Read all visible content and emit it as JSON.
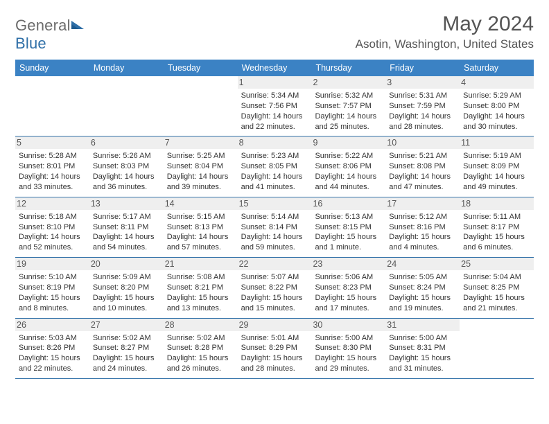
{
  "brand": {
    "general": "General",
    "blue": "Blue"
  },
  "title": "May 2024",
  "location": "Asotin, Washington, United States",
  "weekdays": [
    "Sunday",
    "Monday",
    "Tuesday",
    "Wednesday",
    "Thursday",
    "Friday",
    "Saturday"
  ],
  "colors": {
    "header_bg": "#3b82c4",
    "header_text": "#ffffff",
    "border": "#2f6fa7",
    "daynum_bg": "#efefef",
    "body_text": "#333333",
    "title_text": "#555555"
  },
  "weeks": [
    [
      null,
      null,
      null,
      {
        "n": "1",
        "sr": "Sunrise: 5:34 AM",
        "ss": "Sunset: 7:56 PM",
        "d1": "Daylight: 14 hours",
        "d2": "and 22 minutes."
      },
      {
        "n": "2",
        "sr": "Sunrise: 5:32 AM",
        "ss": "Sunset: 7:57 PM",
        "d1": "Daylight: 14 hours",
        "d2": "and 25 minutes."
      },
      {
        "n": "3",
        "sr": "Sunrise: 5:31 AM",
        "ss": "Sunset: 7:59 PM",
        "d1": "Daylight: 14 hours",
        "d2": "and 28 minutes."
      },
      {
        "n": "4",
        "sr": "Sunrise: 5:29 AM",
        "ss": "Sunset: 8:00 PM",
        "d1": "Daylight: 14 hours",
        "d2": "and 30 minutes."
      }
    ],
    [
      {
        "n": "5",
        "sr": "Sunrise: 5:28 AM",
        "ss": "Sunset: 8:01 PM",
        "d1": "Daylight: 14 hours",
        "d2": "and 33 minutes."
      },
      {
        "n": "6",
        "sr": "Sunrise: 5:26 AM",
        "ss": "Sunset: 8:03 PM",
        "d1": "Daylight: 14 hours",
        "d2": "and 36 minutes."
      },
      {
        "n": "7",
        "sr": "Sunrise: 5:25 AM",
        "ss": "Sunset: 8:04 PM",
        "d1": "Daylight: 14 hours",
        "d2": "and 39 minutes."
      },
      {
        "n": "8",
        "sr": "Sunrise: 5:23 AM",
        "ss": "Sunset: 8:05 PM",
        "d1": "Daylight: 14 hours",
        "d2": "and 41 minutes."
      },
      {
        "n": "9",
        "sr": "Sunrise: 5:22 AM",
        "ss": "Sunset: 8:06 PM",
        "d1": "Daylight: 14 hours",
        "d2": "and 44 minutes."
      },
      {
        "n": "10",
        "sr": "Sunrise: 5:21 AM",
        "ss": "Sunset: 8:08 PM",
        "d1": "Daylight: 14 hours",
        "d2": "and 47 minutes."
      },
      {
        "n": "11",
        "sr": "Sunrise: 5:19 AM",
        "ss": "Sunset: 8:09 PM",
        "d1": "Daylight: 14 hours",
        "d2": "and 49 minutes."
      }
    ],
    [
      {
        "n": "12",
        "sr": "Sunrise: 5:18 AM",
        "ss": "Sunset: 8:10 PM",
        "d1": "Daylight: 14 hours",
        "d2": "and 52 minutes."
      },
      {
        "n": "13",
        "sr": "Sunrise: 5:17 AM",
        "ss": "Sunset: 8:11 PM",
        "d1": "Daylight: 14 hours",
        "d2": "and 54 minutes."
      },
      {
        "n": "14",
        "sr": "Sunrise: 5:15 AM",
        "ss": "Sunset: 8:13 PM",
        "d1": "Daylight: 14 hours",
        "d2": "and 57 minutes."
      },
      {
        "n": "15",
        "sr": "Sunrise: 5:14 AM",
        "ss": "Sunset: 8:14 PM",
        "d1": "Daylight: 14 hours",
        "d2": "and 59 minutes."
      },
      {
        "n": "16",
        "sr": "Sunrise: 5:13 AM",
        "ss": "Sunset: 8:15 PM",
        "d1": "Daylight: 15 hours",
        "d2": "and 1 minute."
      },
      {
        "n": "17",
        "sr": "Sunrise: 5:12 AM",
        "ss": "Sunset: 8:16 PM",
        "d1": "Daylight: 15 hours",
        "d2": "and 4 minutes."
      },
      {
        "n": "18",
        "sr": "Sunrise: 5:11 AM",
        "ss": "Sunset: 8:17 PM",
        "d1": "Daylight: 15 hours",
        "d2": "and 6 minutes."
      }
    ],
    [
      {
        "n": "19",
        "sr": "Sunrise: 5:10 AM",
        "ss": "Sunset: 8:19 PM",
        "d1": "Daylight: 15 hours",
        "d2": "and 8 minutes."
      },
      {
        "n": "20",
        "sr": "Sunrise: 5:09 AM",
        "ss": "Sunset: 8:20 PM",
        "d1": "Daylight: 15 hours",
        "d2": "and 10 minutes."
      },
      {
        "n": "21",
        "sr": "Sunrise: 5:08 AM",
        "ss": "Sunset: 8:21 PM",
        "d1": "Daylight: 15 hours",
        "d2": "and 13 minutes."
      },
      {
        "n": "22",
        "sr": "Sunrise: 5:07 AM",
        "ss": "Sunset: 8:22 PM",
        "d1": "Daylight: 15 hours",
        "d2": "and 15 minutes."
      },
      {
        "n": "23",
        "sr": "Sunrise: 5:06 AM",
        "ss": "Sunset: 8:23 PM",
        "d1": "Daylight: 15 hours",
        "d2": "and 17 minutes."
      },
      {
        "n": "24",
        "sr": "Sunrise: 5:05 AM",
        "ss": "Sunset: 8:24 PM",
        "d1": "Daylight: 15 hours",
        "d2": "and 19 minutes."
      },
      {
        "n": "25",
        "sr": "Sunrise: 5:04 AM",
        "ss": "Sunset: 8:25 PM",
        "d1": "Daylight: 15 hours",
        "d2": "and 21 minutes."
      }
    ],
    [
      {
        "n": "26",
        "sr": "Sunrise: 5:03 AM",
        "ss": "Sunset: 8:26 PM",
        "d1": "Daylight: 15 hours",
        "d2": "and 22 minutes."
      },
      {
        "n": "27",
        "sr": "Sunrise: 5:02 AM",
        "ss": "Sunset: 8:27 PM",
        "d1": "Daylight: 15 hours",
        "d2": "and 24 minutes."
      },
      {
        "n": "28",
        "sr": "Sunrise: 5:02 AM",
        "ss": "Sunset: 8:28 PM",
        "d1": "Daylight: 15 hours",
        "d2": "and 26 minutes."
      },
      {
        "n": "29",
        "sr": "Sunrise: 5:01 AM",
        "ss": "Sunset: 8:29 PM",
        "d1": "Daylight: 15 hours",
        "d2": "and 28 minutes."
      },
      {
        "n": "30",
        "sr": "Sunrise: 5:00 AM",
        "ss": "Sunset: 8:30 PM",
        "d1": "Daylight: 15 hours",
        "d2": "and 29 minutes."
      },
      {
        "n": "31",
        "sr": "Sunrise: 5:00 AM",
        "ss": "Sunset: 8:31 PM",
        "d1": "Daylight: 15 hours",
        "d2": "and 31 minutes."
      },
      null
    ]
  ]
}
